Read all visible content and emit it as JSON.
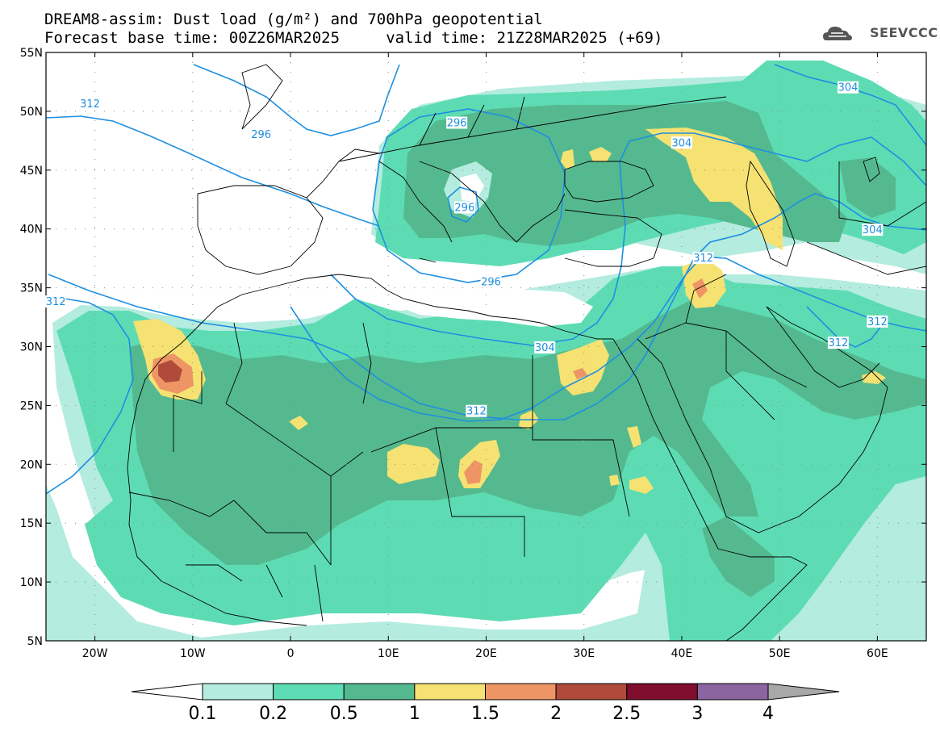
{
  "header": {
    "line1": "DREAM8-assim: Dust load (g/m²) and 700hPa geopotential",
    "line2": "Forecast base time: 00Z26MAR2025     valid time: 21Z28MAR2025 (+69)"
  },
  "logo": {
    "text": "SEEVCCC",
    "icon": "cloud-icon",
    "color": "#555555"
  },
  "map": {
    "lon_range": [
      -25,
      65
    ],
    "lat_range": [
      5,
      55
    ],
    "lat_ticks": [
      {
        "value": 55,
        "label": "55N"
      },
      {
        "value": 50,
        "label": "50N"
      },
      {
        "value": 45,
        "label": "45N"
      },
      {
        "value": 40,
        "label": "40N"
      },
      {
        "value": 35,
        "label": "35N"
      },
      {
        "value": 30,
        "label": "30N"
      },
      {
        "value": 25,
        "label": "25N"
      },
      {
        "value": 20,
        "label": "20N"
      },
      {
        "value": 15,
        "label": "15N"
      },
      {
        "value": 10,
        "label": "10N"
      },
      {
        "value": 5,
        "label": "5N"
      }
    ],
    "lon_ticks": [
      {
        "value": -20,
        "label": "20W"
      },
      {
        "value": -10,
        "label": "10W"
      },
      {
        "value": 0,
        "label": "0"
      },
      {
        "value": 10,
        "label": "10E"
      },
      {
        "value": 20,
        "label": "20E"
      },
      {
        "value": 30,
        "label": "30E"
      },
      {
        "value": 40,
        "label": "40E"
      },
      {
        "value": 50,
        "label": "50E"
      },
      {
        "value": 60,
        "label": "60E"
      }
    ],
    "contour_color": "#1e8fe0",
    "contour_labels": [
      {
        "text": "312",
        "lon": -20.5,
        "lat": 50.6
      },
      {
        "text": "296",
        "lon": -3.0,
        "lat": 48.0
      },
      {
        "text": "296",
        "lon": 17.0,
        "lat": 49.0
      },
      {
        "text": "296",
        "lon": 17.8,
        "lat": 41.8
      },
      {
        "text": "296",
        "lon": 20.5,
        "lat": 35.5
      },
      {
        "text": "304",
        "lon": 40.0,
        "lat": 47.3
      },
      {
        "text": "304",
        "lon": 57.0,
        "lat": 52.0
      },
      {
        "text": "304",
        "lon": 59.5,
        "lat": 39.9
      },
      {
        "text": "312",
        "lon": 42.2,
        "lat": 37.5
      },
      {
        "text": "312",
        "lon": -24.0,
        "lat": 33.8
      },
      {
        "text": "304",
        "lon": 26.0,
        "lat": 29.9
      },
      {
        "text": "312",
        "lon": 19.0,
        "lat": 24.5
      },
      {
        "text": "312",
        "lon": 56.0,
        "lat": 30.3
      },
      {
        "text": "312",
        "lon": 60.0,
        "lat": 32.1
      }
    ]
  },
  "legend": {
    "labels": [
      "0.1",
      "0.2",
      "0.5",
      "1",
      "1.5",
      "2",
      "2.5",
      "3",
      "4"
    ],
    "colors": [
      "#ffffff",
      "#b4ecdf",
      "#5ddcb4",
      "#55b98f",
      "#f5e272",
      "#ee9566",
      "#b04b3c",
      "#7e0d2e",
      "#8a65a0",
      "#a8a8a8"
    ]
  }
}
